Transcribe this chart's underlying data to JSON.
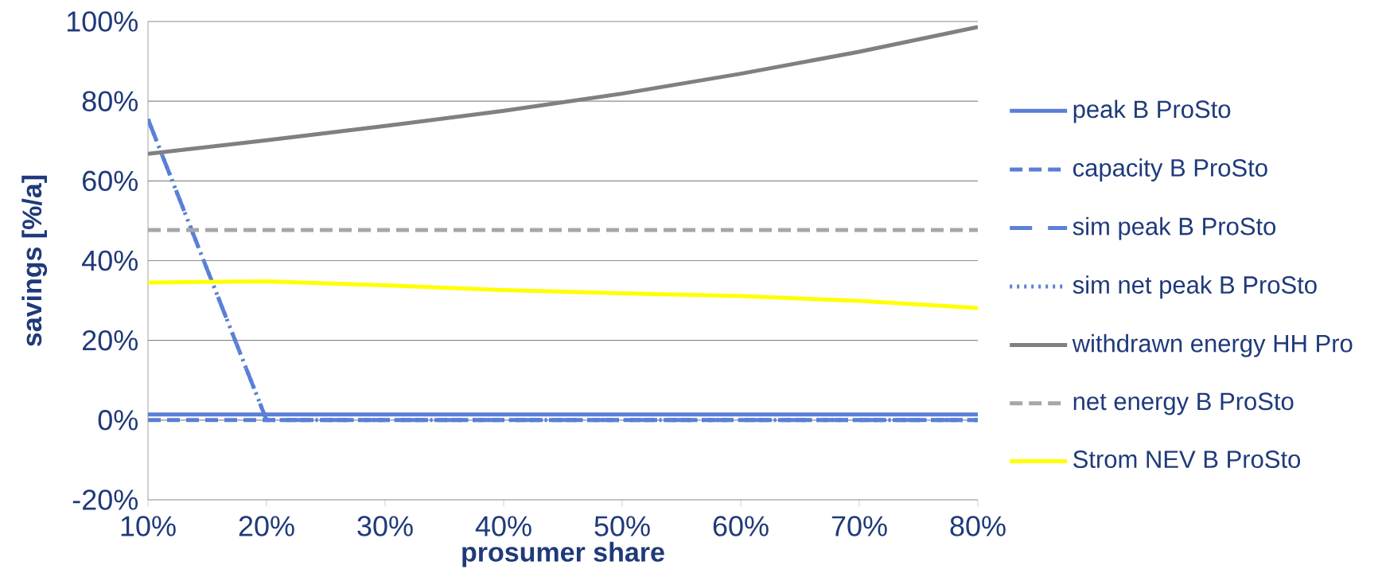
{
  "chart_data": {
    "type": "line",
    "xlabel": "prosumer share",
    "ylabel": "savings [%/a]",
    "x": [
      10,
      20,
      30,
      40,
      50,
      60,
      70,
      80
    ],
    "xlim": [
      10,
      80
    ],
    "xticks": [
      {
        "value": 10,
        "label": "10%"
      },
      {
        "value": 20,
        "label": "20%"
      },
      {
        "value": 30,
        "label": "30%"
      },
      {
        "value": 40,
        "label": "40%"
      },
      {
        "value": 50,
        "label": "50%"
      },
      {
        "value": 60,
        "label": "60%"
      },
      {
        "value": 70,
        "label": "70%"
      },
      {
        "value": 80,
        "label": "80%"
      }
    ],
    "ylim": [
      -20,
      100
    ],
    "yticks": [
      {
        "value": -20,
        "label": "-20%"
      },
      {
        "value": 0,
        "label": "0%"
      },
      {
        "value": 20,
        "label": "20%"
      },
      {
        "value": 40,
        "label": "40%"
      },
      {
        "value": 60,
        "label": "60%"
      },
      {
        "value": 80,
        "label": "80%"
      },
      {
        "value": 100,
        "label": "100%"
      }
    ],
    "grid": "y",
    "legend": "right",
    "series": [
      {
        "name": "peak B ProSto",
        "color": "#5b7fd6",
        "line_style": "solid",
        "values": [
          1.4,
          1.4,
          1.4,
          1.4,
          1.4,
          1.4,
          1.4,
          1.4
        ]
      },
      {
        "name": "capacity B ProSto",
        "color": "#5a7ed5",
        "line_style": "dashed",
        "values": [
          0,
          0,
          0,
          0,
          0,
          0,
          0,
          0
        ]
      },
      {
        "name": "sim peak B ProSto",
        "color": "#5c80d7",
        "line_style": "dashed",
        "values": [
          75.5,
          0,
          0,
          0,
          0,
          0,
          0,
          0
        ]
      },
      {
        "name": "sim net peak B ProSto",
        "color": "#5980d8",
        "line_style": "dotted",
        "values": [
          75.5,
          0,
          0,
          0,
          0,
          0,
          0,
          0
        ]
      },
      {
        "name": "withdrawn energy HH Pro",
        "color": "#808080",
        "line_style": "solid",
        "values": [
          66.8,
          70.2,
          73.8,
          77.6,
          81.9,
          86.9,
          92.4,
          98.6
        ]
      },
      {
        "name": "net energy B ProSto",
        "color": "#a6a6a6",
        "line_style": "dashed",
        "values": [
          47.7,
          47.7,
          47.7,
          47.7,
          47.7,
          47.7,
          47.7,
          47.7
        ]
      },
      {
        "name": "Strom NEV B ProSto",
        "color": "#ffff00",
        "line_style": "solid",
        "values": [
          34.5,
          34.8,
          33.8,
          32.6,
          31.8,
          31.1,
          29.9,
          28.1
        ]
      }
    ]
  }
}
